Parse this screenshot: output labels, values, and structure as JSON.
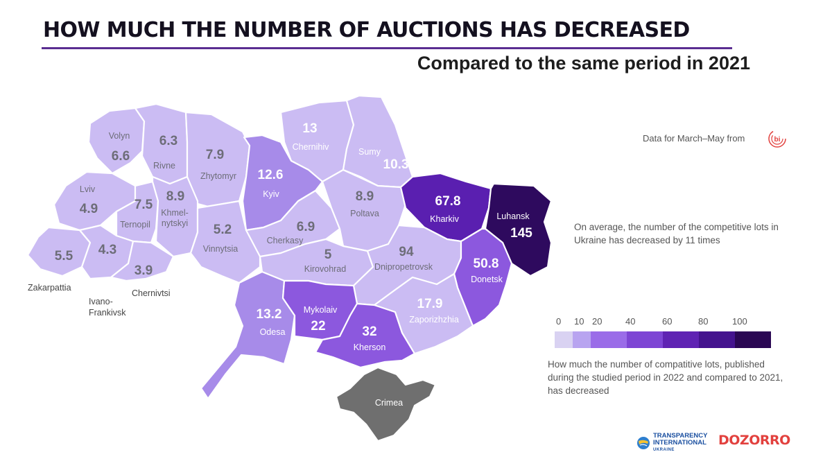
{
  "title": "HOW MUCH THE NUMBER OF AUCTIONS HAS DECREASED",
  "subtitle": "Compared to the same period in 2021",
  "source_note": "Data for March–May from",
  "source_logo": "bi",
  "average_note": "On average, the number of the competitive lots in Ukraine has decreased by 11 times",
  "legend": {
    "ticks": [
      "0",
      "10",
      "20",
      "40",
      "60",
      "80",
      "100"
    ],
    "colors": [
      "#d9d2f2",
      "#b8a4f0",
      "#9a6ce8",
      "#7d45d4",
      "#5f23b3",
      "#44138e",
      "#2a0753"
    ],
    "description": "How much the number of compatitive lots, published during the studied period in 2022 and compared to 2021, has decreased"
  },
  "colors": {
    "low": "#cbbcf3",
    "mid": "#a78be9",
    "high": "#8c58de",
    "kharkiv": "#5a1fb0",
    "luhansk": "#2e0a5e",
    "crimea": "#6f6f6f",
    "title_underline": "#5a2d91"
  },
  "regions": {
    "volyn": {
      "name": "Volyn",
      "value": "6.6"
    },
    "rivne": {
      "name": "Rivne",
      "value": "6.3"
    },
    "zhytomyr": {
      "name": "Zhytomyr",
      "value": "7.9"
    },
    "kyiv": {
      "name": "Kyiv",
      "value": "12.6"
    },
    "chernihiv": {
      "name": "Chernihiv",
      "value": "13"
    },
    "sumy": {
      "name": "Sumy",
      "value": "10.3"
    },
    "lviv": {
      "name": "Lviv",
      "value": "4.9"
    },
    "ternopil": {
      "name": "Ternopil",
      "value": "7.5"
    },
    "khmelnytskyi": {
      "name_line1": "Khmel-",
      "name_line2": "nytskyi",
      "value": "8.9"
    },
    "vinnytsia": {
      "name": "Vinnytsia",
      "value": "5.2"
    },
    "cherkasy": {
      "name": "Cherkasy",
      "value": "6.9"
    },
    "poltava": {
      "name": "Poltava",
      "value": "8.9"
    },
    "kharkiv": {
      "name": "Kharkiv",
      "value": "67.8"
    },
    "luhansk": {
      "name": "Luhansk",
      "value": "145"
    },
    "zakarpattia": {
      "name": "Zakarpattia",
      "value": "5.5"
    },
    "ivano_frankivsk": {
      "name_line1": "Ivano-",
      "name_line2": "Frankivsk",
      "value": "4.3"
    },
    "chernivtsi": {
      "name": "Chernivtsi",
      "value": "3.9"
    },
    "kirovohrad": {
      "name": "Kirovohrad",
      "value": "5"
    },
    "dnipropetrovsk": {
      "name": "Dnipropetrovsk",
      "value": "94"
    },
    "donetsk": {
      "name": "Donetsk",
      "value": "50.8"
    },
    "odesa": {
      "name": "Odesa",
      "value": "13.2"
    },
    "mykolaiv": {
      "name": "Mykolaiv",
      "value": "22"
    },
    "kherson": {
      "name": "Kherson",
      "value": "32"
    },
    "zaporizhzhia": {
      "name": "Zaporizhzhia",
      "value": "17.9"
    },
    "crimea": {
      "name": "Crimea"
    }
  },
  "logos": {
    "ti_line1": "TRANSPARENCY",
    "ti_line2": "INTERNATIONAL",
    "ti_line3": "UKRAINE",
    "dozorro": "DOZORRO"
  }
}
